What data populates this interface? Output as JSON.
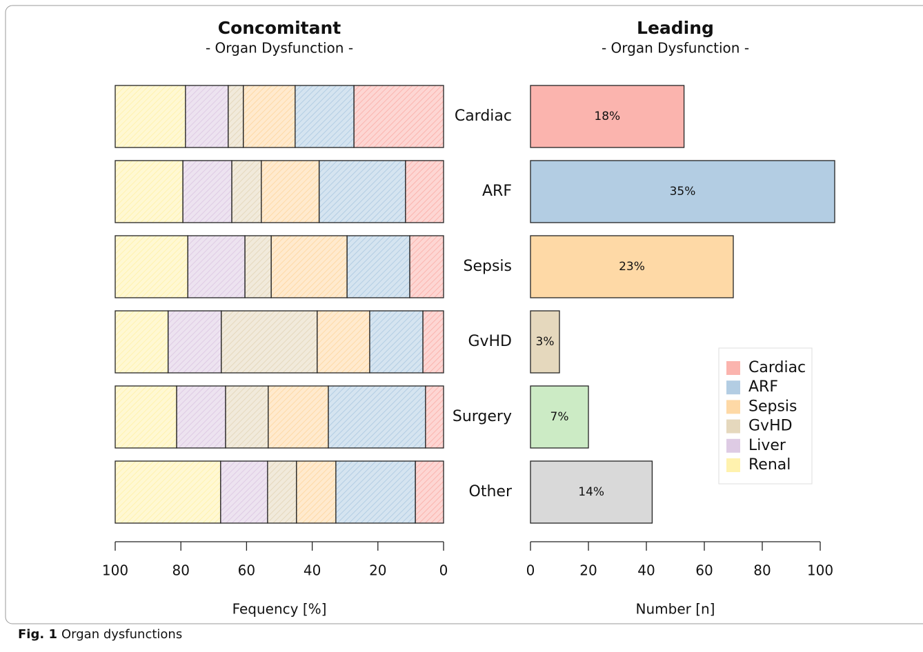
{
  "caption": {
    "label": "Fig. 1",
    "text": "Organ dysfunctions"
  },
  "chart_data": [
    {
      "type": "stacked-bar",
      "orientation": "horizontal",
      "title": "Concomitant",
      "subtitle": "- Organ Dysfunction -",
      "xlabel": "Fequency [%]",
      "xlim": [
        100,
        0
      ],
      "xticks": [
        100,
        80,
        60,
        40,
        20,
        0
      ],
      "hatched": true,
      "series": [
        {
          "name": "Cardiac",
          "color": "#fbb4ae",
          "values": [
            27.3,
            11.6,
            10.3,
            6.3,
            5.5,
            8.6
          ]
        },
        {
          "name": "ARF",
          "color": "#b3cde3",
          "values": [
            17.9,
            26.3,
            19.1,
            16.2,
            29.6,
            24.2
          ]
        },
        {
          "name": "Sepsis",
          "color": "#fed9a6",
          "values": [
            15.8,
            17.6,
            23.1,
            16.0,
            18.3,
            12.0
          ]
        },
        {
          "name": "GvHD",
          "color": "#e5d8bd",
          "values": [
            4.6,
            9.0,
            8.0,
            29.2,
            13.0,
            8.8
          ]
        },
        {
          "name": "Liver",
          "color": "#decbe4",
          "values": [
            13.0,
            14.9,
            17.4,
            16.2,
            14.9,
            14.3
          ]
        },
        {
          "name": "Renal",
          "color": "#fff2ae",
          "values": [
            21.4,
            20.6,
            22.1,
            16.1,
            18.7,
            32.1
          ]
        }
      ]
    },
    {
      "type": "bar",
      "orientation": "horizontal",
      "title": "Leading",
      "subtitle": "- Organ Dysfunction -",
      "xlabel": "Number [n]",
      "xlim": [
        0,
        100
      ],
      "xticks": [
        0,
        20,
        40,
        60,
        80,
        100
      ],
      "legend": "lower right",
      "categories": [
        "Cardiac",
        "ARF",
        "Sepsis",
        "GvHD",
        "Surgery",
        "Other"
      ],
      "values": [
        53,
        105,
        70,
        10,
        20,
        42
      ],
      "value_labels": [
        "18%",
        "35%",
        "23%",
        "3%",
        "7%",
        "14%"
      ],
      "colors": [
        "#fbb4ae",
        "#b3cde3",
        "#fed9a6",
        "#e5d8bd",
        "#ccebc5",
        "#d9d9d9"
      ]
    }
  ]
}
